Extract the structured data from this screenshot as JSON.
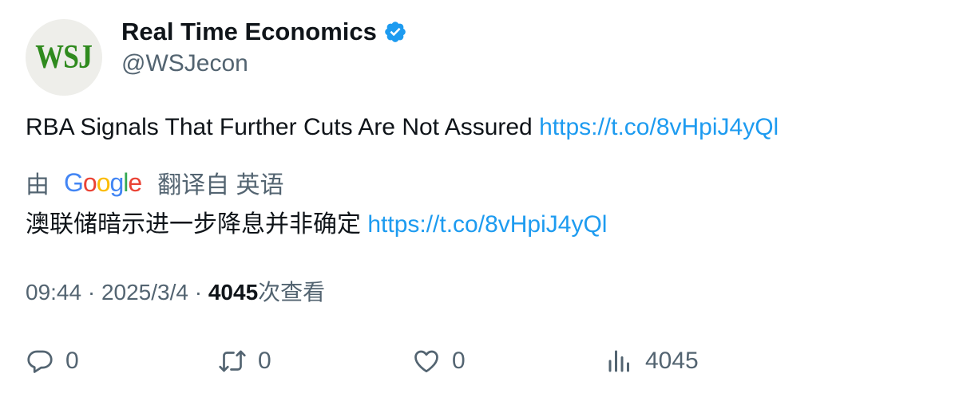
{
  "author": {
    "avatar_text": "WSJ",
    "name": "Real Time Economics",
    "handle": "@WSJecon",
    "verified_icon": "verified-badge-icon"
  },
  "tweet": {
    "text": "RBA Signals That Further Cuts Are Not Assured",
    "link": "https://t.co/8vHpiJ4yQl"
  },
  "translation": {
    "by_label": "由",
    "provider": "Google",
    "from_label": "翻译自 英语",
    "text": "澳联储暗示进一步降息并非确定",
    "link": "https://t.co/8vHpiJ4yQl"
  },
  "meta": {
    "time": "09:44",
    "separator": " · ",
    "date": "2025/3/4",
    "views_count": "4045",
    "views_label": "次查看"
  },
  "actions": {
    "reply_count": "0",
    "retweet_count": "0",
    "like_count": "0",
    "views_count": "4045"
  },
  "colors": {
    "link": "#1d9bf0",
    "secondary_text": "#536471",
    "primary_text": "#0f1419",
    "verified": "#1d9bf0",
    "avatar_logo": "#2f8a1e"
  }
}
